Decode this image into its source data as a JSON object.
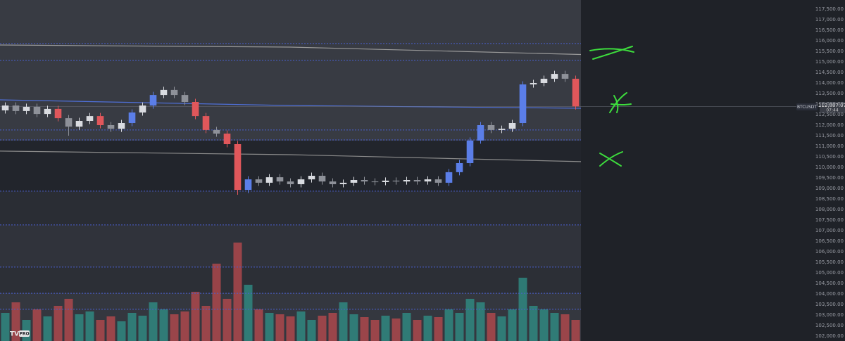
{
  "chart_data": {
    "type": "candlestick",
    "symbol": "BTCUSDT",
    "last_price": {
      "value": 112887.07,
      "label": "112,887.07"
    },
    "countdown": "07:44",
    "logo_badge": "PRO",
    "up_color": "#d9dbe0",
    "down_color": "#8e9199",
    "strong_up_color": "#5b7ee8",
    "strong_down_color": "#e0575b",
    "ylim": [
      101767,
      117933
    ],
    "open": [
      112700,
      112930,
      112670,
      112870,
      112530,
      112770,
      112330,
      111930,
      112200,
      112430,
      112000,
      111830,
      112100,
      112600,
      112930,
      113430,
      113670,
      113430,
      113100,
      112430,
      111770,
      111600,
      111100,
      108930,
      109430,
      109270,
      109530,
      109330,
      109200,
      109430,
      109600,
      109330,
      109200,
      109270,
      109400,
      109330,
      109300,
      109370,
      109330,
      109400,
      109330,
      109430,
      109270,
      109770,
      110200,
      111270,
      112000,
      111770,
      111830,
      112100,
      113930,
      114000,
      114200,
      114430,
      114200
    ],
    "high": [
      113080,
      113080,
      113020,
      113020,
      112920,
      112920,
      112480,
      112350,
      112580,
      112580,
      112150,
      112250,
      112750,
      113080,
      113580,
      113820,
      113820,
      113580,
      113250,
      112580,
      111920,
      111750,
      111250,
      109580,
      109580,
      109680,
      109680,
      109480,
      109580,
      109750,
      109750,
      109480,
      109420,
      109550,
      109550,
      109480,
      109520,
      109520,
      109550,
      109550,
      109580,
      109580,
      109920,
      110350,
      111420,
      112150,
      112150,
      111980,
      112250,
      114080,
      114150,
      114350,
      114580,
      114580,
      114350
    ],
    "low": [
      112550,
      112520,
      112520,
      112380,
      112380,
      112180,
      111500,
      111780,
      112050,
      111850,
      111680,
      111680,
      111950,
      112450,
      112780,
      113280,
      113280,
      112950,
      112280,
      111620,
      111450,
      110950,
      108700,
      108780,
      109120,
      109120,
      109180,
      109050,
      109050,
      109280,
      109180,
      109050,
      109050,
      109120,
      109180,
      109150,
      109150,
      109180,
      109180,
      109180,
      109180,
      109120,
      109120,
      109620,
      110050,
      111120,
      111620,
      111620,
      111680,
      111950,
      113780,
      113850,
      114050,
      114050,
      112740
    ],
    "close": [
      112930,
      112670,
      112870,
      112530,
      112770,
      112330,
      111930,
      112200,
      112430,
      112000,
      111830,
      112100,
      112600,
      112930,
      113430,
      113670,
      113430,
      113100,
      112430,
      111770,
      111600,
      111100,
      108930,
      109430,
      109270,
      109530,
      109330,
      109200,
      109430,
      109600,
      109330,
      109200,
      109270,
      109400,
      109330,
      109300,
      109370,
      109330,
      109400,
      109330,
      109430,
      109270,
      109770,
      110200,
      111270,
      112000,
      111770,
      111830,
      112100,
      113930,
      114000,
      114200,
      114430,
      114200,
      112887.07
    ],
    "volume": {
      "ylim": [
        0,
        150
      ],
      "up_color": "#2f8c84",
      "down_color": "#b4494d",
      "values": [
        40,
        55,
        30,
        45,
        35,
        50,
        60,
        38,
        42,
        30,
        35,
        28,
        40,
        36,
        55,
        45,
        38,
        42,
        70,
        50,
        110,
        60,
        140,
        80,
        45,
        40,
        38,
        35,
        42,
        30,
        36,
        40,
        55,
        38,
        34,
        30,
        36,
        32,
        40,
        30,
        36,
        34,
        45,
        40,
        60,
        55,
        40,
        35,
        45,
        90,
        50,
        45,
        40,
        38,
        30
      ]
    },
    "moving_averages": [
      {
        "color": "#9a9a9a",
        "values": [
          115800,
          115700,
          115350
        ]
      },
      {
        "color": "#4f6fd6",
        "values": [
          113200,
          112930,
          112800
        ]
      },
      {
        "color": "#8a8a8a",
        "values": [
          110770,
          110600,
          110270
        ]
      }
    ],
    "level_color": "#4a5fcf",
    "levels": [
      115870,
      115070,
      111770,
      111300,
      108870,
      107270,
      105270,
      104030,
      103270
    ],
    "yticks": [
      {
        "value": 102000,
        "label": "102,000.00"
      },
      {
        "value": 102500,
        "label": "102,500.00"
      },
      {
        "value": 103000,
        "label": "103,000.00"
      },
      {
        "value": 103500,
        "label": "103,500.00"
      },
      {
        "value": 104000,
        "label": "104,000.00"
      },
      {
        "value": 104500,
        "label": "104,500.00"
      },
      {
        "value": 105000,
        "label": "105,000.00"
      },
      {
        "value": 105500,
        "label": "105,500.00"
      },
      {
        "value": 106000,
        "label": "106,000.00"
      },
      {
        "value": 106500,
        "label": "106,500.00"
      },
      {
        "value": 107000,
        "label": "107,000.00"
      },
      {
        "value": 107500,
        "label": "107,500.00"
      },
      {
        "value": 108000,
        "label": "108,000.00"
      },
      {
        "value": 108500,
        "label": "108,500.00"
      },
      {
        "value": 109000,
        "label": "109,000.00"
      },
      {
        "value": 109500,
        "label": "109,500.00"
      },
      {
        "value": 110000,
        "label": "110,000.00"
      },
      {
        "value": 110500,
        "label": "110,500.00"
      },
      {
        "value": 111000,
        "label": "111,000.00"
      },
      {
        "value": 111500,
        "label": "111,500.00"
      },
      {
        "value": 112000,
        "label": "112,000.00"
      },
      {
        "value": 112500,
        "label": "112,500.00"
      },
      {
        "value": 113000,
        "label": "113,000.00"
      },
      {
        "value": 113500,
        "label": "113,500.00"
      },
      {
        "value": 114000,
        "label": "114,000.00"
      },
      {
        "value": 114500,
        "label": "114,500.00"
      },
      {
        "value": 115000,
        "label": "115,000.00"
      },
      {
        "value": 115500,
        "label": "115,500.00"
      },
      {
        "value": 116000,
        "label": "116,000.00"
      },
      {
        "value": 116500,
        "label": "116,500.00"
      },
      {
        "value": 117000,
        "label": "117,000.00"
      },
      {
        "value": 117500,
        "label": "117,500.00"
      }
    ]
  }
}
